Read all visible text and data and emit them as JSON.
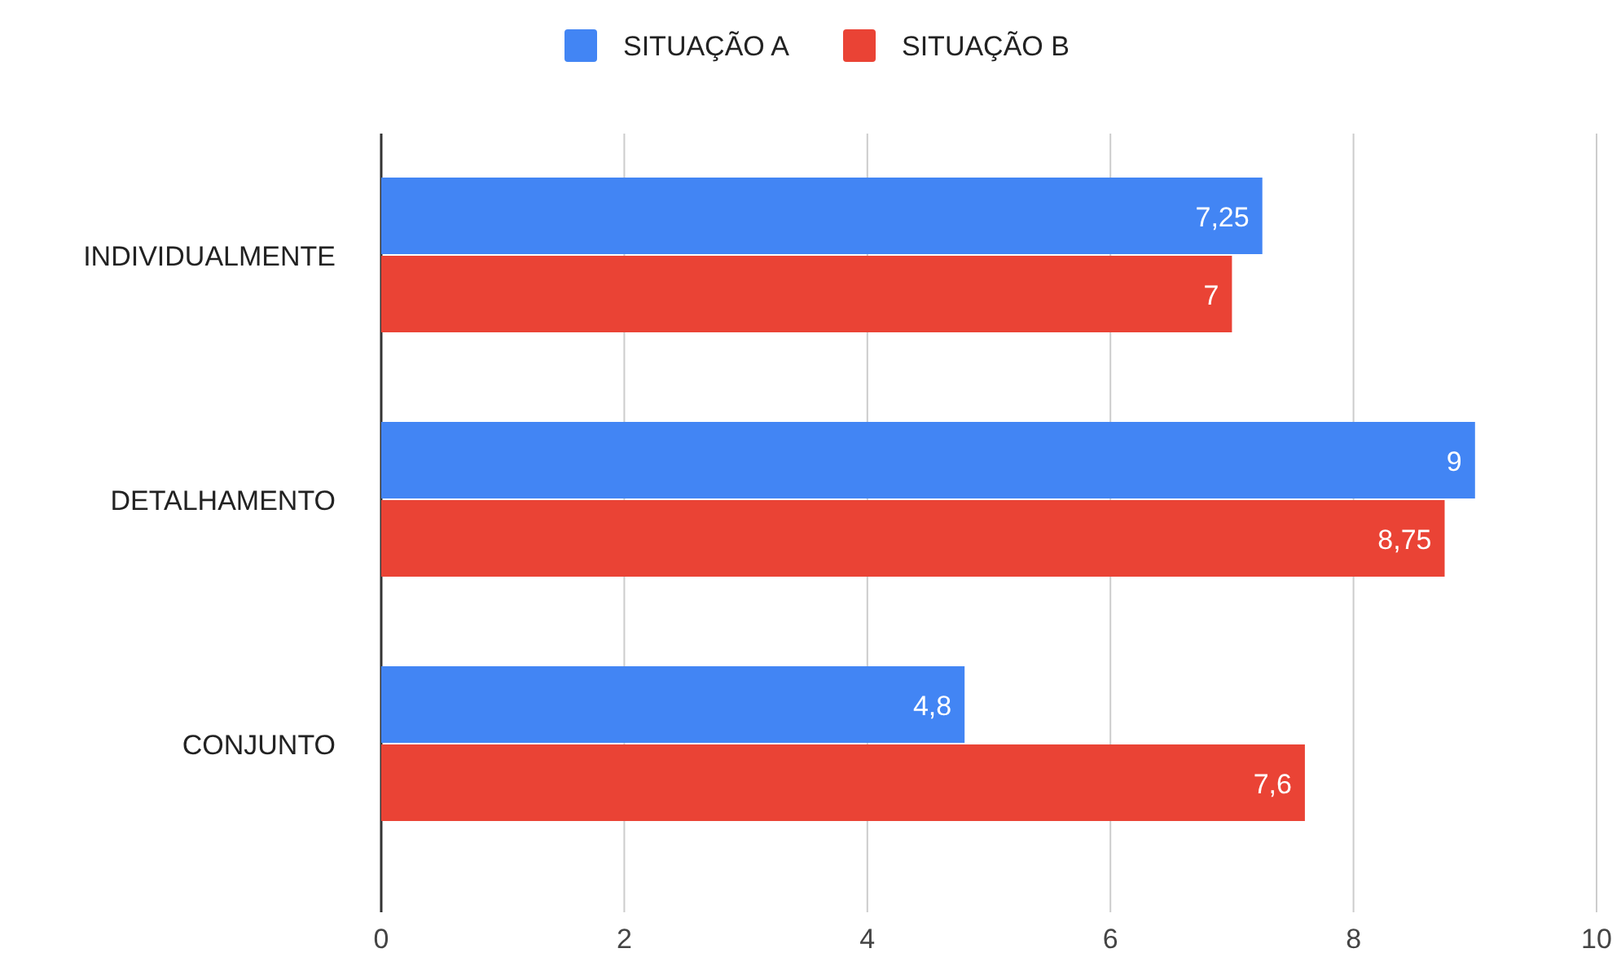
{
  "chart_data": {
    "type": "bar",
    "orientation": "horizontal",
    "categories": [
      "INDIVIDUALMENTE",
      "DETALHAMENTO",
      "CONJUNTO"
    ],
    "series": [
      {
        "name": "SITUAÇÃO A",
        "color": "#4285f4",
        "values": [
          7.25,
          9,
          4.8
        ],
        "value_labels": [
          "7,25",
          "9",
          "4,8"
        ]
      },
      {
        "name": "SITUAÇÃO B",
        "color": "#ea4335",
        "values": [
          7,
          8.75,
          7.6
        ],
        "value_labels": [
          "7",
          "8,75",
          "7,6"
        ]
      }
    ],
    "xlim": [
      0,
      10
    ],
    "xticks": [
      0,
      2,
      4,
      6,
      8,
      10
    ],
    "grid": "x",
    "legend": "top"
  }
}
